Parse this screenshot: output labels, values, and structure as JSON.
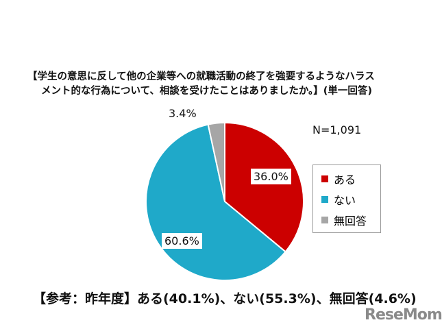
{
  "chart_data": {
    "type": "pie",
    "title_line1": "【学生の意思に反して他の企業等への就職活動の終了を強要するようなハラス",
    "title_line2": "メント的な行為について、相談を受けたことはありましたか。】(単一回答)",
    "n_label": "N=1,091",
    "categories": [
      "ある",
      "ない",
      "無回答"
    ],
    "values": [
      36.0,
      60.6,
      3.4
    ],
    "data_labels": [
      "36.0%",
      "60.6%",
      "3.4%"
    ],
    "colors": [
      "#cc0000",
      "#1fa9c9",
      "#a6a6a6"
    ],
    "legend_position": "right",
    "reference": "【参考：昨年度】ある(40.1%)、ない(55.3%)、無回答(4.6%)"
  },
  "watermark": "ReseMom"
}
